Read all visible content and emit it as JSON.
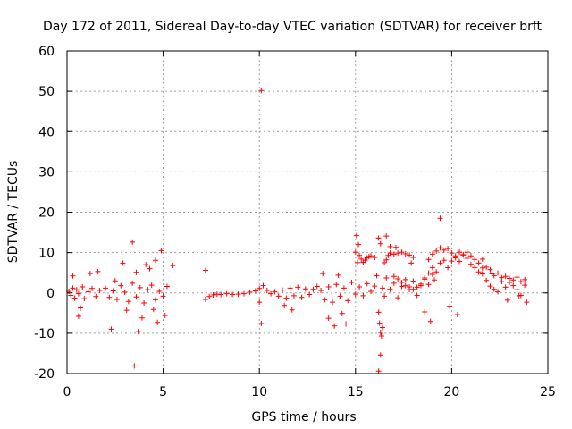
{
  "chart_data": {
    "type": "scatter",
    "title": "Day 172 of 2011, Sidereal Day-to-day VTEC variation (SDTVAR) for receiver brft",
    "xlabel": "GPS time / hours",
    "ylabel": "SDTVAR / TECUs",
    "xlim": [
      0,
      25
    ],
    "ylim": [
      -20,
      60
    ],
    "x_ticks": [
      0,
      5,
      10,
      15,
      20,
      25
    ],
    "y_ticks": [
      -20,
      -10,
      0,
      10,
      20,
      30,
      40,
      50,
      60
    ],
    "grid": true,
    "marker": "+",
    "color": "#ff0000",
    "series": [
      {
        "name": "SDTVAR",
        "x": [
          0.1,
          0.2,
          0.3,
          0.4,
          0.5,
          0.6,
          0.8,
          0.9,
          1.1,
          1.3,
          1.5,
          1.7,
          2.0,
          2.2,
          2.4,
          2.6,
          2.8,
          3.0,
          3.2,
          3.4,
          3.6,
          3.8,
          4.0,
          4.2,
          4.4,
          4.6,
          4.8,
          5.0,
          5.2,
          0.3,
          0.6,
          1.2,
          2.3,
          2.9,
          3.4,
          3.5,
          3.6,
          3.7,
          4.3,
          4.6,
          4.9,
          5.1,
          5.5,
          4.7,
          3.1,
          2.5,
          0.7,
          1.6,
          3.9,
          4.1,
          4.5,
          7.2,
          7.4,
          7.6,
          7.8,
          8.0,
          8.3,
          8.6,
          8.9,
          9.2,
          9.5,
          9.8,
          10.0,
          10.2,
          10.4,
          10.6,
          10.8,
          11.0,
          11.2,
          11.4,
          11.6,
          11.8,
          12.0,
          12.2,
          12.4,
          12.6,
          12.8,
          13.0,
          10.1,
          10.1,
          7.2,
          10.0,
          11.3,
          11.7,
          13.2,
          13.4,
          13.6,
          13.8,
          14.0,
          14.2,
          14.4,
          14.6,
          14.8,
          15.0,
          15.2,
          15.4,
          15.6,
          15.8,
          16.0,
          13.6,
          13.9,
          14.3,
          14.5,
          14.1,
          13.3,
          15.0,
          15.05,
          15.1,
          15.15,
          15.2,
          15.3,
          15.4,
          15.5,
          15.6,
          15.7,
          15.8,
          16.0,
          16.1,
          16.2,
          16.25,
          16.3,
          16.35,
          16.4,
          16.5,
          16.6,
          16.7,
          16.8,
          17.0,
          17.2,
          17.4,
          17.6,
          17.8,
          18.0,
          17.0,
          17.2,
          17.4,
          17.6,
          17.8,
          18.0,
          18.2,
          18.4,
          18.6,
          18.8,
          19.0,
          16.2,
          16.3,
          16.4,
          16.5,
          16.6,
          16.8,
          17.0,
          17.2,
          17.4,
          17.6,
          17.8,
          18.0,
          18.2,
          18.4,
          18.6,
          18.8,
          19.0,
          19.2,
          19.4,
          19.6,
          19.8,
          20.0,
          20.2,
          20.4,
          20.6,
          20.8,
          21.0,
          21.2,
          21.4,
          21.6,
          21.8,
          22.0,
          22.2,
          22.4,
          22.6,
          22.8,
          23.0,
          23.2,
          23.4,
          23.6,
          23.8,
          18.8,
          19.0,
          19.2,
          19.4,
          19.6,
          19.8,
          20.0,
          20.2,
          20.4,
          20.6,
          20.8,
          21.0,
          21.2,
          21.4,
          21.6,
          21.8,
          22.0,
          22.2,
          22.4,
          22.6,
          22.8,
          23.0,
          23.2,
          23.4,
          23.6,
          23.8,
          16.2,
          16.3,
          16.6,
          16.8,
          19.4,
          18.6,
          18.9,
          19.9,
          20.3,
          21.6,
          22.1,
          22.9,
          23.5,
          23.9,
          17.1,
          17.9,
          19.1
        ],
        "y": [
          0.4,
          -0.6,
          1.2,
          -1.3,
          0.8,
          -0.2,
          1.5,
          -1.4,
          0.3,
          1.1,
          -0.9,
          0.6,
          1.2,
          -1.1,
          0.5,
          -1.6,
          1.8,
          0.2,
          -2.1,
          2.4,
          -1.0,
          1.3,
          -2.5,
          0.8,
          1.9,
          -1.7,
          0.4,
          -0.8,
          1.6,
          4.2,
          -5.8,
          4.8,
          -9.0,
          7.4,
          12.6,
          -18.1,
          5.1,
          -9.6,
          6.0,
          8.1,
          10.5,
          -5.6,
          6.8,
          -7.3,
          -4.3,
          3.0,
          -3.7,
          5.3,
          -6.2,
          7.0,
          -4.1,
          -1.6,
          -0.9,
          -0.5,
          -0.3,
          -0.4,
          -0.2,
          -0.4,
          -0.3,
          -0.2,
          0.2,
          0.5,
          1.1,
          1.8,
          0.6,
          -0.2,
          0.3,
          -0.8,
          0.7,
          -1.3,
          1.2,
          -0.7,
          1.4,
          -1.1,
          1.0,
          -0.4,
          0.9,
          1.6,
          50.2,
          -7.6,
          5.6,
          -2.3,
          -3.1,
          -4.2,
          0.6,
          -1.7,
          1.5,
          -2.3,
          2.1,
          -0.8,
          1.2,
          -1.9,
          2.6,
          -0.3,
          1.5,
          -0.7,
          2.3,
          0.4,
          1.7,
          -6.3,
          -8.2,
          -5.1,
          -7.7,
          4.4,
          4.8,
          10.1,
          14.2,
          7.5,
          12.0,
          9.3,
          8.4,
          7.6,
          8.1,
          8.7,
          9.0,
          9.2,
          8.8,
          4.3,
          -4.8,
          -7.5,
          -9.8,
          -10.7,
          -8.6,
          7.5,
          8.2,
          9.3,
          9.9,
          9.6,
          9.9,
          10.1,
          9.7,
          9.4,
          8.8,
          4.1,
          3.5,
          2.6,
          1.8,
          1.5,
          0.9,
          1.4,
          2.2,
          3.7,
          4.9,
          6.3,
          -19.4,
          -15.4,
          1.2,
          -0.8,
          3.7,
          0.9,
          2.4,
          -1.2,
          1.6,
          3.3,
          0.8,
          2.9,
          -0.6,
          1.8,
          3.4,
          2.1,
          4.6,
          5.2,
          7.4,
          8.1,
          6.3,
          7.9,
          9.2,
          10.1,
          9.4,
          8.6,
          7.1,
          6.3,
          5.2,
          4.7,
          6.4,
          5.8,
          4.3,
          4.9,
          3.8,
          4.1,
          3.6,
          3.2,
          3.9,
          2.8,
          3.3,
          8.3,
          9.6,
          10.4,
          11.2,
          10.6,
          11.0,
          9.9,
          8.7,
          7.8,
          9.5,
          10.1,
          9.2,
          8.3,
          7.4,
          6.2,
          3.1,
          1.7,
          0.9,
          0.3,
          2.8,
          1.4,
          2.6,
          1.8,
          0.8,
          -0.6,
          1.9,
          13.6,
          12.2,
          14.1,
          11.5,
          18.5,
          -4.7,
          -7.1,
          -3.3,
          -5.4,
          8.4,
          4.7,
          -1.8,
          -0.7,
          -2.3,
          11.3,
          7.4,
          3.2
        ]
      }
    ]
  }
}
